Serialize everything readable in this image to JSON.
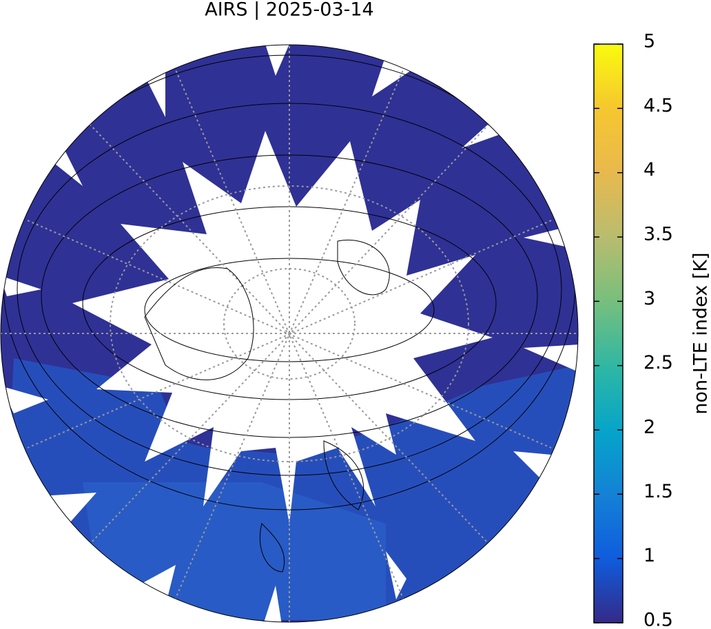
{
  "title": "AIRS | 2025-03-14",
  "colorbar": {
    "label": "non-LTE index [K]",
    "lim": [
      0.5,
      5
    ],
    "ticks": [
      0.5,
      1,
      1.5,
      2,
      2.5,
      3,
      3.5,
      4,
      4.5,
      5
    ]
  }
}
